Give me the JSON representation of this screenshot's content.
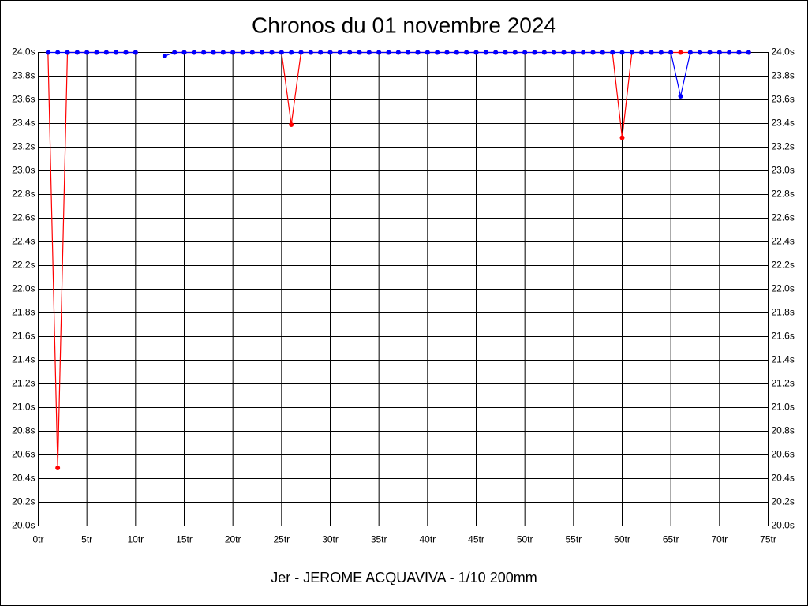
{
  "chart_data": {
    "type": "line",
    "title": "Chronos du 01 novembre 2024",
    "x_label": "Jer - JEROME ACQUAVIVA - 1/10 200mm",
    "x": [
      1,
      2,
      3,
      4,
      5,
      6,
      7,
      8,
      9,
      10,
      11,
      12,
      13,
      14,
      15,
      16,
      17,
      18,
      19,
      20,
      21,
      22,
      23,
      24,
      25,
      26,
      27,
      28,
      29,
      30,
      31,
      32,
      33,
      34,
      35,
      36,
      37,
      38,
      39,
      40,
      41,
      42,
      43,
      44,
      45,
      46,
      47,
      48,
      49,
      50,
      51,
      52,
      53,
      54,
      55,
      56,
      57,
      58,
      59,
      60,
      61,
      62,
      63,
      64,
      65,
      66,
      67,
      68,
      69,
      70,
      71,
      72,
      73
    ],
    "series": [
      {
        "color": "#ff0000",
        "values": [
          24.0,
          20.49,
          24.0,
          24.0,
          24.0,
          24.0,
          24.0,
          24.0,
          24.0,
          24.0,
          null,
          null,
          null,
          24.0,
          24.0,
          24.0,
          24.0,
          24.0,
          24.0,
          24.0,
          24.0,
          24.0,
          24.0,
          24.0,
          24.0,
          23.39,
          24.0,
          24.0,
          24.0,
          24.0,
          24.0,
          24.0,
          24.0,
          24.0,
          24.0,
          24.0,
          24.0,
          24.0,
          24.0,
          24.0,
          24.0,
          24.0,
          24.0,
          24.0,
          24.0,
          24.0,
          24.0,
          24.0,
          24.0,
          24.0,
          24.0,
          24.0,
          24.0,
          24.0,
          24.0,
          24.0,
          24.0,
          24.0,
          24.0,
          23.28,
          24.0,
          24.0,
          24.0,
          24.0,
          24.0,
          24.0,
          24.0,
          24.0,
          24.0,
          24.0,
          24.0,
          24.0,
          24.0
        ]
      },
      {
        "color": "#0000ff",
        "values": [
          24.0,
          24.0,
          24.0,
          24.0,
          24.0,
          24.0,
          24.0,
          24.0,
          24.0,
          24.0,
          null,
          null,
          23.97,
          24.0,
          24.0,
          24.0,
          24.0,
          24.0,
          24.0,
          24.0,
          24.0,
          24.0,
          24.0,
          24.0,
          24.0,
          24.0,
          24.0,
          24.0,
          24.0,
          24.0,
          24.0,
          24.0,
          24.0,
          24.0,
          24.0,
          24.0,
          24.0,
          24.0,
          24.0,
          24.0,
          24.0,
          24.0,
          24.0,
          24.0,
          24.0,
          24.0,
          24.0,
          24.0,
          24.0,
          24.0,
          24.0,
          24.0,
          24.0,
          24.0,
          24.0,
          24.0,
          24.0,
          24.0,
          24.0,
          24.0,
          24.0,
          24.0,
          24.0,
          24.0,
          24.0,
          23.63,
          24.0,
          24.0,
          24.0,
          24.0,
          24.0,
          24.0,
          24.0
        ]
      }
    ],
    "xlim": [
      0,
      75
    ],
    "xticks": [
      {
        "value": 0,
        "label": "0tr"
      },
      {
        "value": 5,
        "label": "5tr"
      },
      {
        "value": 10,
        "label": "10tr"
      },
      {
        "value": 15,
        "label": "15tr"
      },
      {
        "value": 20,
        "label": "20tr"
      },
      {
        "value": 25,
        "label": "25tr"
      },
      {
        "value": 30,
        "label": "30tr"
      },
      {
        "value": 35,
        "label": "35tr"
      },
      {
        "value": 40,
        "label": "40tr"
      },
      {
        "value": 45,
        "label": "45tr"
      },
      {
        "value": 50,
        "label": "50tr"
      },
      {
        "value": 55,
        "label": "55tr"
      },
      {
        "value": 60,
        "label": "60tr"
      },
      {
        "value": 65,
        "label": "65tr"
      },
      {
        "value": 70,
        "label": "70tr"
      },
      {
        "value": 75,
        "label": "75tr"
      }
    ],
    "ylim": [
      20.0,
      24.0
    ],
    "yticks": [
      {
        "value": 20.0,
        "label": "20.0s"
      },
      {
        "value": 20.2,
        "label": "20.2s"
      },
      {
        "value": 20.4,
        "label": "20.4s"
      },
      {
        "value": 20.6,
        "label": "20.6s"
      },
      {
        "value": 20.8,
        "label": "20.8s"
      },
      {
        "value": 21.0,
        "label": "21.0s"
      },
      {
        "value": 21.2,
        "label": "21.2s"
      },
      {
        "value": 21.4,
        "label": "21.4s"
      },
      {
        "value": 21.6,
        "label": "21.6s"
      },
      {
        "value": 21.8,
        "label": "21.8s"
      },
      {
        "value": 22.0,
        "label": "22.0s"
      },
      {
        "value": 22.2,
        "label": "22.2s"
      },
      {
        "value": 22.4,
        "label": "22.4s"
      },
      {
        "value": 22.6,
        "label": "22.6s"
      },
      {
        "value": 22.8,
        "label": "22.8s"
      },
      {
        "value": 23.0,
        "label": "23.0s"
      },
      {
        "value": 23.2,
        "label": "23.2s"
      },
      {
        "value": 23.4,
        "label": "23.4s"
      },
      {
        "value": 23.6,
        "label": "23.6s"
      },
      {
        "value": 23.8,
        "label": "23.8s"
      },
      {
        "value": 24.0,
        "label": "24.0s"
      }
    ],
    "grid": true
  }
}
